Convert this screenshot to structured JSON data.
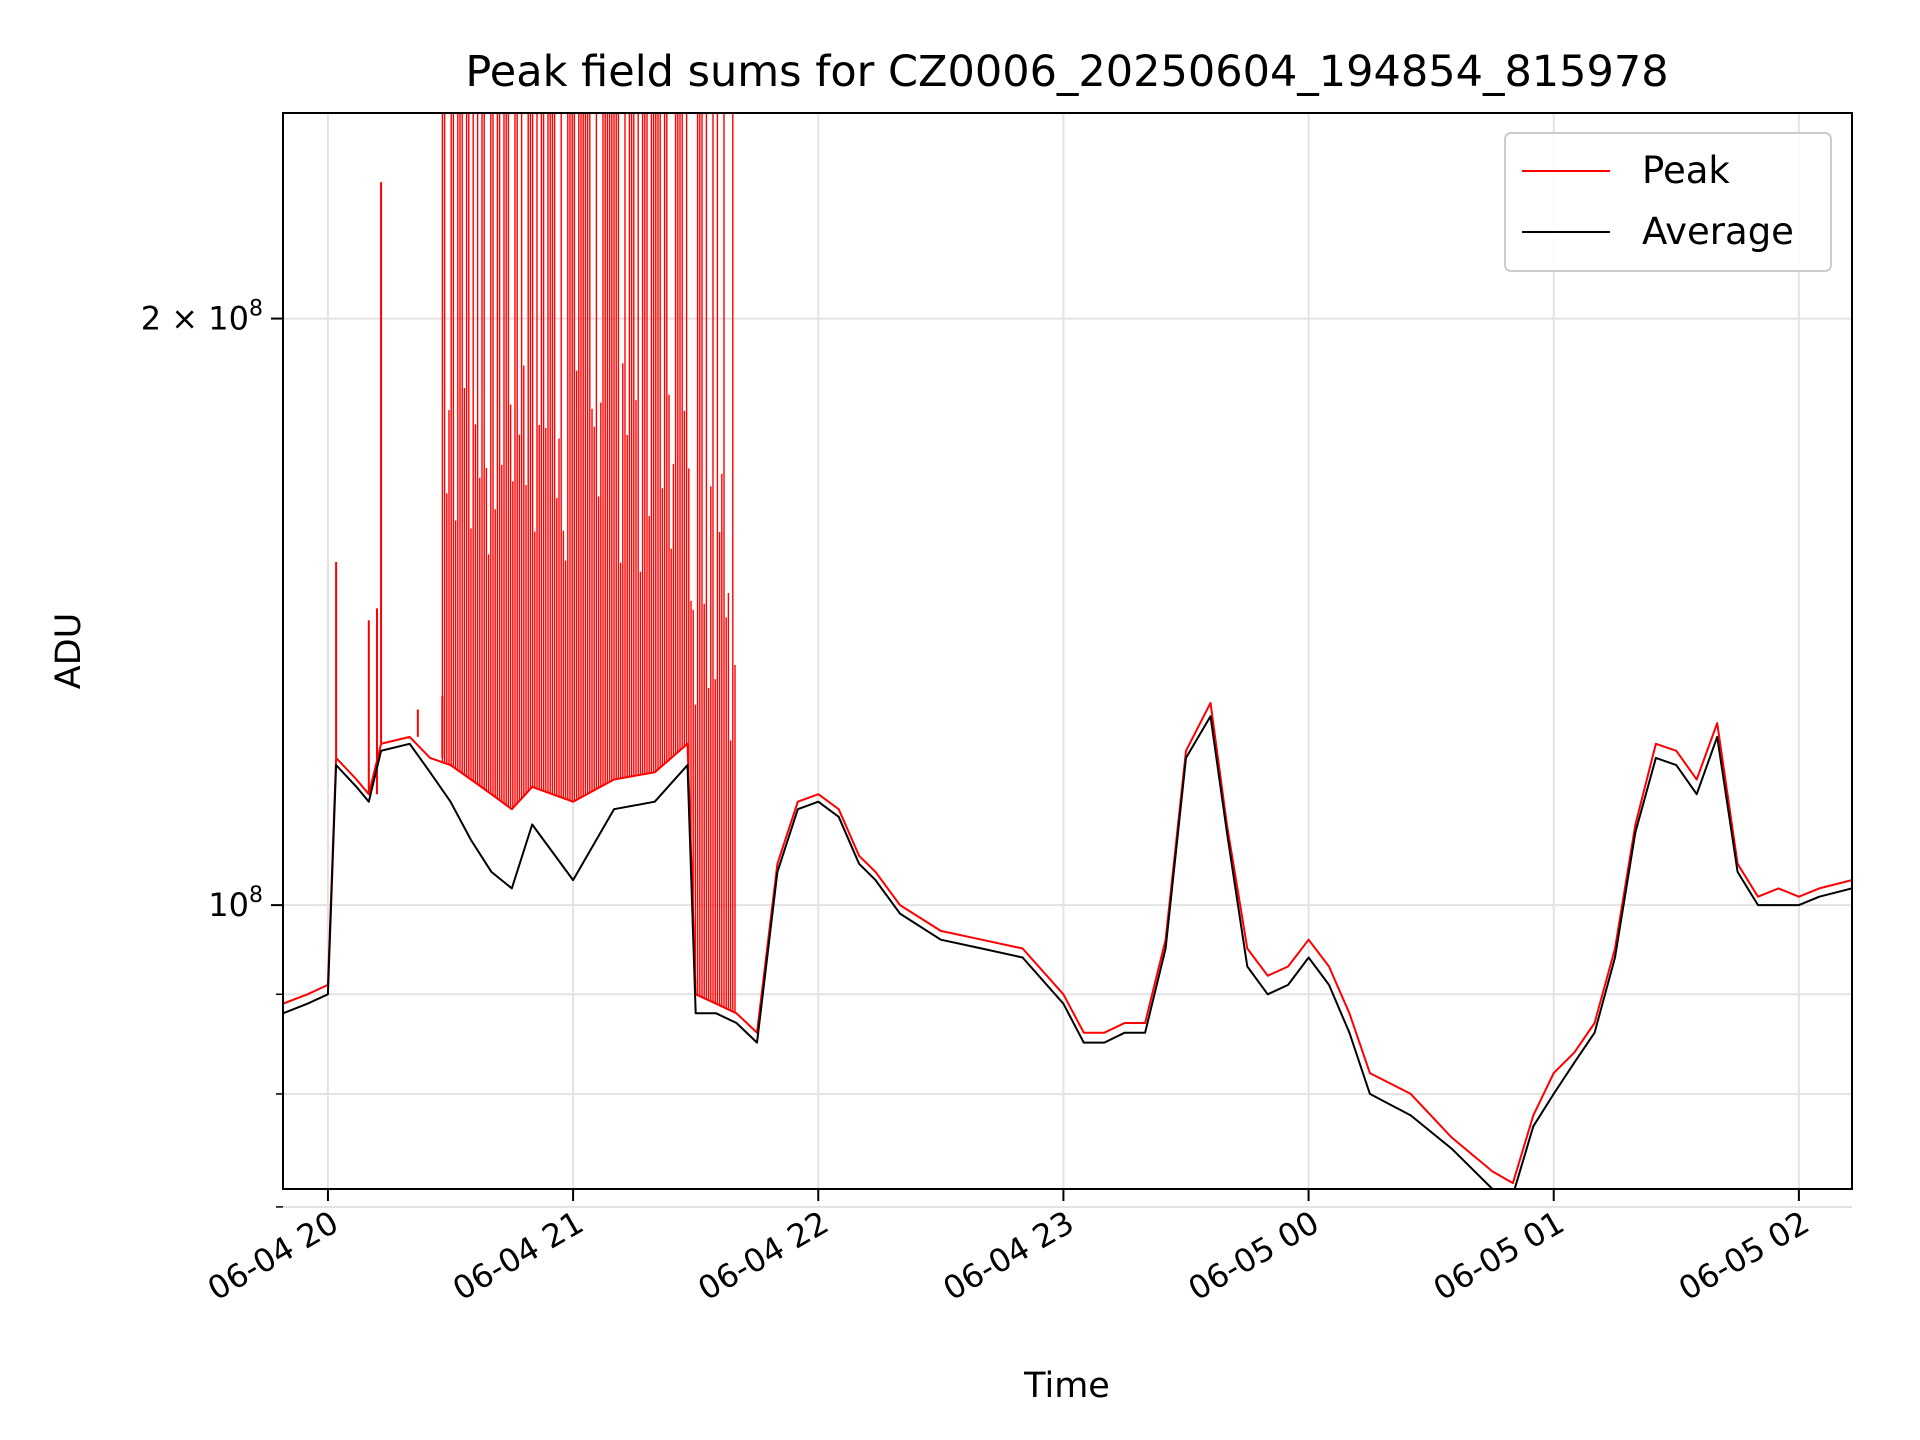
{
  "chart_data": {
    "type": "line",
    "title": "Peak field sums for CZ0006_20250604_194854_815978",
    "xlabel": "Time",
    "ylabel": "ADU",
    "yscale": "log",
    "ylim": [
      71500000,
      255000000
    ],
    "xlim": [
      "06-04 19:49",
      "06-05 02:13"
    ],
    "grid": true,
    "legend_position": "top-right",
    "x_ticks": [
      {
        "t": "06-04 20:00",
        "label": "06-04 20"
      },
      {
        "t": "06-04 21:00",
        "label": "06-04 21"
      },
      {
        "t": "06-04 22:00",
        "label": "06-04 22"
      },
      {
        "t": "06-04 23:00",
        "label": "06-04 23"
      },
      {
        "t": "06-05 00:00",
        "label": "06-05 00"
      },
      {
        "t": "06-05 01:00",
        "label": "06-05 01"
      },
      {
        "t": "06-05 02:00",
        "label": "06-05 02"
      }
    ],
    "y_major_ticks": [
      {
        "v": 100000000,
        "base": "10",
        "exp": "8",
        "coef": ""
      },
      {
        "v": 200000000,
        "base": "10",
        "exp": "8",
        "coef": "2 × "
      }
    ],
    "y_minor_ticks": [
      70000000,
      80000000,
      90000000
    ],
    "series": [
      {
        "name": "Peak",
        "color": "#ff0000",
        "x": [
          "06-04 19:49",
          "06-04 19:55",
          "06-04 20:00",
          "06-04 20:02",
          "06-04 20:07",
          "06-04 20:10",
          "06-04 20:13",
          "06-04 20:20",
          "06-04 20:25",
          "06-04 20:30",
          "06-04 20:35",
          "06-04 20:40",
          "06-04 20:45",
          "06-04 20:50",
          "06-04 21:00",
          "06-04 21:10",
          "06-04 21:20",
          "06-04 21:28",
          "06-04 21:30",
          "06-04 21:35",
          "06-04 21:40",
          "06-04 21:45",
          "06-04 21:50",
          "06-04 21:55",
          "06-04 22:00",
          "06-04 22:05",
          "06-04 22:10",
          "06-04 22:14",
          "06-04 22:20",
          "06-04 22:30",
          "06-04 22:40",
          "06-04 22:50",
          "06-04 23:00",
          "06-04 23:05",
          "06-04 23:10",
          "06-04 23:15",
          "06-04 23:20",
          "06-04 23:25",
          "06-04 23:30",
          "06-04 23:36",
          "06-04 23:40",
          "06-04 23:45",
          "06-04 23:50",
          "06-04 23:55",
          "06-05 00:00",
          "06-05 00:05",
          "06-05 00:10",
          "06-05 00:15",
          "06-05 00:25",
          "06-05 00:35",
          "06-05 00:45",
          "06-05 00:50",
          "06-05 00:55",
          "06-05 01:00",
          "06-05 01:05",
          "06-05 01:10",
          "06-05 01:15",
          "06-05 01:20",
          "06-05 01:25",
          "06-05 01:30",
          "06-05 01:35",
          "06-05 01:40",
          "06-05 01:45",
          "06-05 01:50",
          "06-05 01:55",
          "06-05 02:00",
          "06-05 02:05",
          "06-05 02:13"
        ],
        "values": [
          89000000,
          90000000,
          91000000,
          119000000,
          116000000,
          114000000,
          121000000,
          122000000,
          119000000,
          118000000,
          116000000,
          114000000,
          112000000,
          115000000,
          113000000,
          116000000,
          117000000,
          121000000,
          90000000,
          89000000,
          88000000,
          86000000,
          105000000,
          113000000,
          114000000,
          112000000,
          106000000,
          104000000,
          100000000,
          97000000,
          96000000,
          95000000,
          90000000,
          86000000,
          86000000,
          87000000,
          87000000,
          96000000,
          120000000,
          127000000,
          110000000,
          95000000,
          92000000,
          93000000,
          96000000,
          93000000,
          88000000,
          82000000,
          80000000,
          76000000,
          73000000,
          72000000,
          78000000,
          82000000,
          84000000,
          87000000,
          95000000,
          110000000,
          121000000,
          120000000,
          116000000,
          124000000,
          105000000,
          101000000,
          102000000,
          101000000,
          102000000,
          103000000
        ],
        "spikes": [
          {
            "x": "06-04 20:02",
            "top": 150000000
          },
          {
            "x": "06-04 20:10",
            "top": 140000000
          },
          {
            "x": "06-04 20:12",
            "top": 142000000
          },
          {
            "x": "06-04 20:13",
            "top": 235000000
          },
          {
            "x": "06-04 20:22",
            "top": 126000000
          },
          {
            "x": "06-04 20:28",
            "top": 128000000
          }
        ],
        "burst_region": {
          "start": "06-04 20:28",
          "end": "06-04 21:40",
          "top": 255000000
        }
      },
      {
        "name": "Average",
        "color": "#000000",
        "x": [
          "06-04 19:49",
          "06-04 19:55",
          "06-04 20:00",
          "06-04 20:02",
          "06-04 20:07",
          "06-04 20:10",
          "06-04 20:13",
          "06-04 20:20",
          "06-04 20:25",
          "06-04 20:30",
          "06-04 20:35",
          "06-04 20:40",
          "06-04 20:45",
          "06-04 20:50",
          "06-04 21:00",
          "06-04 21:10",
          "06-04 21:20",
          "06-04 21:28",
          "06-04 21:30",
          "06-04 21:35",
          "06-04 21:40",
          "06-04 21:45",
          "06-04 21:50",
          "06-04 21:55",
          "06-04 22:00",
          "06-04 22:05",
          "06-04 22:10",
          "06-04 22:14",
          "06-04 22:20",
          "06-04 22:30",
          "06-04 22:40",
          "06-04 22:50",
          "06-04 23:00",
          "06-04 23:05",
          "06-04 23:10",
          "06-04 23:15",
          "06-04 23:20",
          "06-04 23:25",
          "06-04 23:30",
          "06-04 23:36",
          "06-04 23:40",
          "06-04 23:45",
          "06-04 23:50",
          "06-04 23:55",
          "06-05 00:00",
          "06-05 00:05",
          "06-05 00:10",
          "06-05 00:15",
          "06-05 00:25",
          "06-05 00:35",
          "06-05 00:45",
          "06-05 00:50",
          "06-05 00:55",
          "06-05 01:00",
          "06-05 01:05",
          "06-05 01:10",
          "06-05 01:15",
          "06-05 01:20",
          "06-05 01:25",
          "06-05 01:30",
          "06-05 01:35",
          "06-05 01:40",
          "06-05 01:45",
          "06-05 01:50",
          "06-05 01:55",
          "06-05 02:00",
          "06-05 02:05",
          "06-05 02:13"
        ],
        "values": [
          88000000,
          89000000,
          90000000,
          118000000,
          115000000,
          113000000,
          120000000,
          121000000,
          117000000,
          113000000,
          108000000,
          104000000,
          102000000,
          110000000,
          103000000,
          112000000,
          113000000,
          118000000,
          88000000,
          88000000,
          87000000,
          85000000,
          104000000,
          112000000,
          113000000,
          111000000,
          105000000,
          103000000,
          99000000,
          96000000,
          95000000,
          94000000,
          89000000,
          85000000,
          85000000,
          86000000,
          86000000,
          95000000,
          119000000,
          125000000,
          109000000,
          93000000,
          90000000,
          91000000,
          94000000,
          91000000,
          86000000,
          80000000,
          78000000,
          75000000,
          71500000,
          71000000,
          77000000,
          80000000,
          83000000,
          86000000,
          94000000,
          109000000,
          119000000,
          118000000,
          114000000,
          122000000,
          104000000,
          100000000,
          100000000,
          100000000,
          101000000,
          102000000
        ]
      }
    ]
  }
}
